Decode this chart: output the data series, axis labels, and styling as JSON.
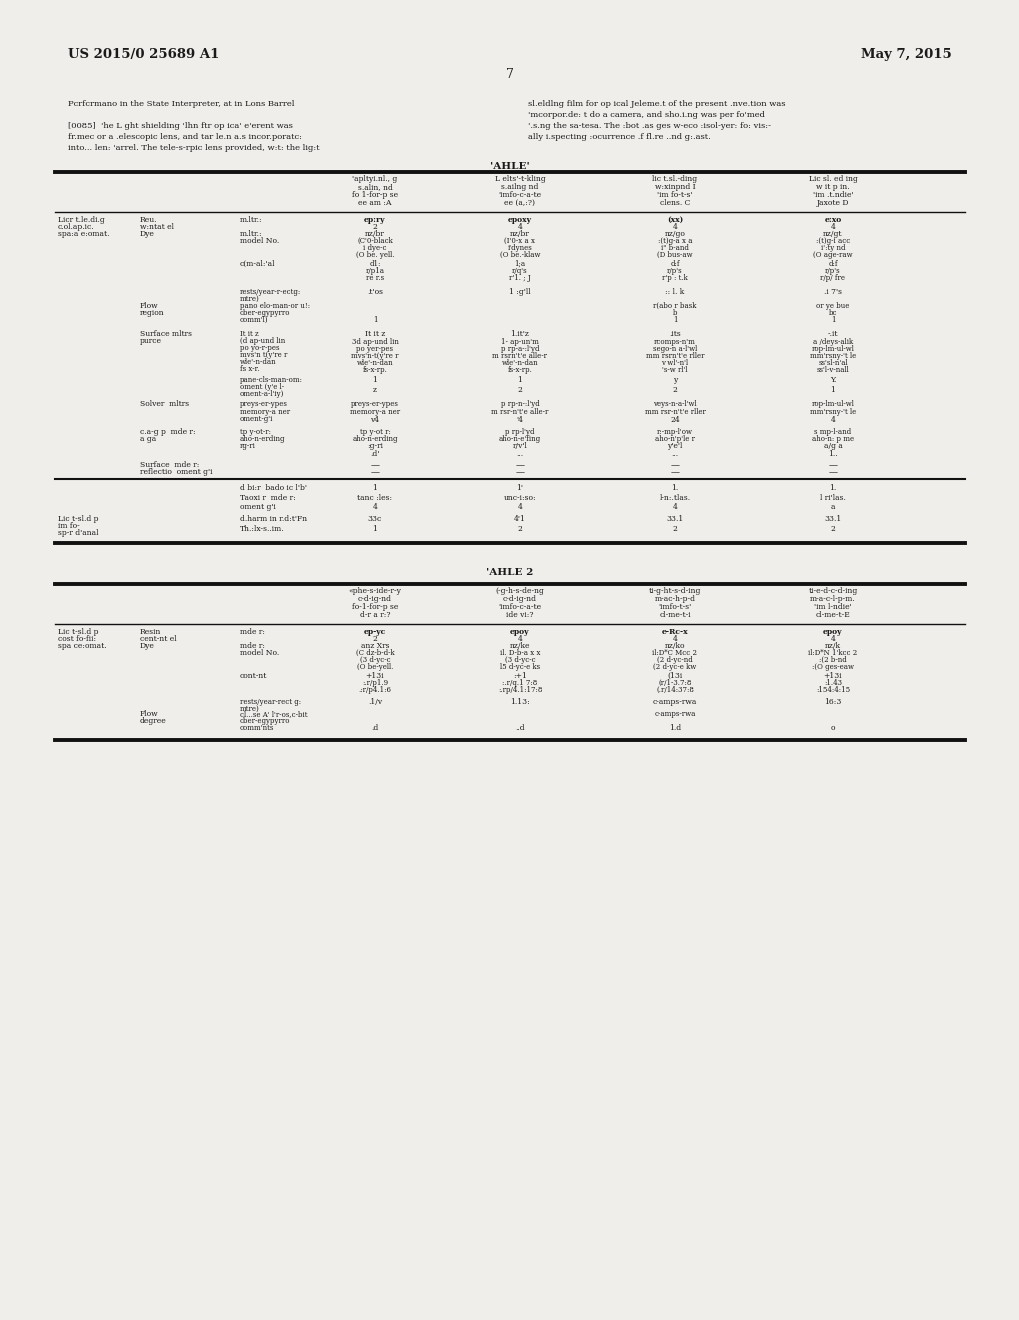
{
  "page_number": "7",
  "header_left": "US 2015/0 25689 A1",
  "header_right": "May 7, 2015",
  "bg_color": "#f0eeeb",
  "text_color": "#1a1a1a",
  "table1_title": "'AHLE'",
  "table2_title": "'AHLE 2"
}
